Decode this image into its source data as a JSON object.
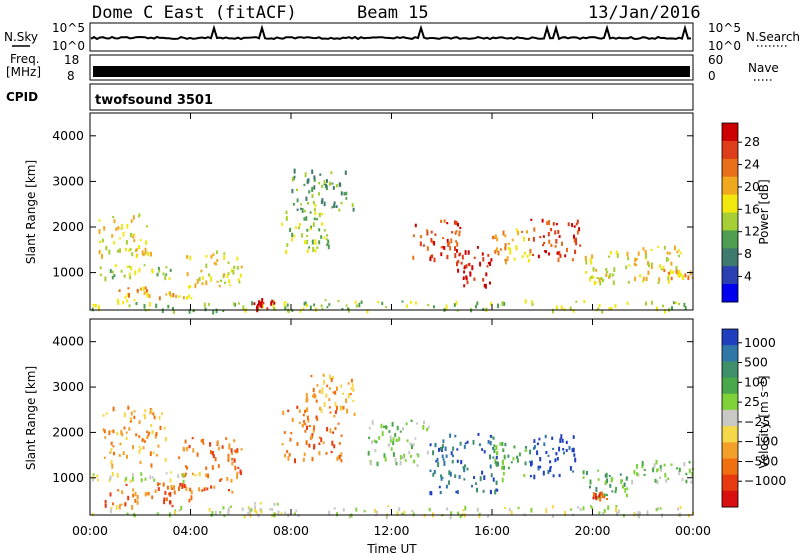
{
  "header": {
    "station": "Dome C East (fitACF)",
    "beam": "Beam 15",
    "date": "13/Jan/2016"
  },
  "nsky_panel": {
    "left_label": "N.Sky",
    "right_label": "N.Search",
    "left_ticks": [
      "10^5",
      "10^0"
    ],
    "right_ticks": [
      "10^5",
      "10^0"
    ]
  },
  "freq_panel": {
    "left_label_1": "Freq.",
    "left_label_2": "[MHz]",
    "right_label": "Nave",
    "left_ticks": [
      "18",
      "8"
    ],
    "right_ticks": [
      "60",
      "0"
    ]
  },
  "cpid_panel": {
    "label": "CPID",
    "value": "twofsound 3501"
  },
  "chart_data": [
    {
      "type": "heatmap",
      "name": "power",
      "ylabel": "Slant Range [km]",
      "yticks": [
        "4000",
        "3000",
        "2000",
        "1000"
      ],
      "ylim": [
        180,
        4500
      ],
      "xlim": [
        0,
        24
      ],
      "colorbar_label": "Power [dB]",
      "colorbar_ticks": [
        "28",
        "24",
        "20",
        "16",
        "12",
        "8",
        "4"
      ],
      "colorbar_colors": [
        "#0000ee",
        "#2a3fb0",
        "#3f7a6e",
        "#4e9e52",
        "#a6cf35",
        "#f2e70f",
        "#f0a81f",
        "#e8701a",
        "#dd3d18",
        "#cc0000"
      ],
      "features": [
        {
          "t0": 0.0,
          "t1": 24.0,
          "r0": 180,
          "r1": 420,
          "level": 4
        },
        {
          "t0": 0.3,
          "t1": 3.3,
          "r0": 900,
          "r1": 1200,
          "level": 4
        },
        {
          "t0": 0.3,
          "t1": 2.5,
          "r0": 1400,
          "r1": 2300,
          "level": 5
        },
        {
          "t0": 1.0,
          "t1": 4.0,
          "r0": 400,
          "r1": 700,
          "level": 6
        },
        {
          "t0": 3.8,
          "t1": 6.0,
          "r0": 700,
          "r1": 1500,
          "level": 5
        },
        {
          "t0": 6.5,
          "t1": 7.5,
          "r0": 200,
          "r1": 500,
          "level": 9
        },
        {
          "t0": 7.6,
          "t1": 9.5,
          "r0": 1500,
          "r1": 2600,
          "level": 4
        },
        {
          "t0": 8.0,
          "t1": 10.5,
          "r0": 2400,
          "r1": 3300,
          "level": 3
        },
        {
          "t0": 12.8,
          "t1": 14.8,
          "r0": 1300,
          "r1": 2200,
          "level": 8
        },
        {
          "t0": 14.5,
          "t1": 16.0,
          "r0": 700,
          "r1": 1600,
          "level": 9
        },
        {
          "t0": 16.0,
          "t1": 17.5,
          "r0": 1200,
          "r1": 2000,
          "level": 6
        },
        {
          "t0": 17.5,
          "t1": 19.5,
          "r0": 1300,
          "r1": 2200,
          "level": 8
        },
        {
          "t0": 19.5,
          "t1": 23.5,
          "r0": 800,
          "r1": 1600,
          "level": 5
        },
        {
          "t0": 22.5,
          "t1": 24.0,
          "r0": 900,
          "r1": 1100,
          "level": 6
        }
      ]
    },
    {
      "type": "heatmap",
      "name": "velocity",
      "ylabel": "Slant Range [km]",
      "yticks": [
        "4000",
        "3000",
        "2000",
        "1000"
      ],
      "ylim": [
        180,
        4500
      ],
      "xlim": [
        0,
        24
      ],
      "xticks": [
        "00:00",
        "04:00",
        "08:00",
        "12:00",
        "16:00",
        "20:00",
        "00:00"
      ],
      "xlabel": "Time UT",
      "colorbar_label": "Velocity [m s⁻¹]",
      "colorbar_ticks": [
        "1000",
        "500",
        "100",
        "25",
        "−25",
        "−100",
        "−500",
        "−1000"
      ],
      "colorbar_colors": [
        "#1f3fbf",
        "#3077a8",
        "#3f8f6a",
        "#4aa84a",
        "#7fd23a",
        "#c8c8c4",
        "#f5d84a",
        "#f2a02a",
        "#f07010",
        "#e83a10",
        "#d81010"
      ],
      "features": [
        {
          "t0": 0.0,
          "t1": 24.0,
          "r0": 180,
          "r1": 400,
          "level": 5
        },
        {
          "t0": 0.3,
          "t1": 4.0,
          "r0": 400,
          "r1": 900,
          "level": 8
        },
        {
          "t0": 0.5,
          "t1": 3.0,
          "r0": 1300,
          "r1": 2600,
          "level": 7
        },
        {
          "t0": 3.5,
          "t1": 6.0,
          "r0": 700,
          "r1": 1900,
          "level": 8
        },
        {
          "t0": 0.0,
          "t1": 4.5,
          "r0": 950,
          "r1": 1150,
          "level": 5
        },
        {
          "t0": 6.3,
          "t1": 7.5,
          "r0": 200,
          "r1": 500,
          "level": 5
        },
        {
          "t0": 7.6,
          "t1": 10.0,
          "r0": 1400,
          "r1": 2600,
          "level": 8
        },
        {
          "t0": 8.5,
          "t1": 10.5,
          "r0": 2400,
          "r1": 3300,
          "level": 7
        },
        {
          "t0": 11.0,
          "t1": 13.5,
          "r0": 1300,
          "r1": 2300,
          "level": 4
        },
        {
          "t0": 13.5,
          "t1": 16.2,
          "r0": 700,
          "r1": 2000,
          "level": 1
        },
        {
          "t0": 16.0,
          "t1": 17.5,
          "r0": 1000,
          "r1": 1800,
          "level": 3
        },
        {
          "t0": 17.5,
          "t1": 19.3,
          "r0": 1000,
          "r1": 2000,
          "level": 0
        },
        {
          "t0": 19.5,
          "t1": 21.5,
          "r0": 600,
          "r1": 1200,
          "level": 3
        },
        {
          "t0": 20.0,
          "t1": 20.6,
          "r0": 500,
          "r1": 700,
          "level": 9
        },
        {
          "t0": 21.5,
          "t1": 24.0,
          "r0": 900,
          "r1": 1400,
          "level": 4
        }
      ]
    }
  ]
}
